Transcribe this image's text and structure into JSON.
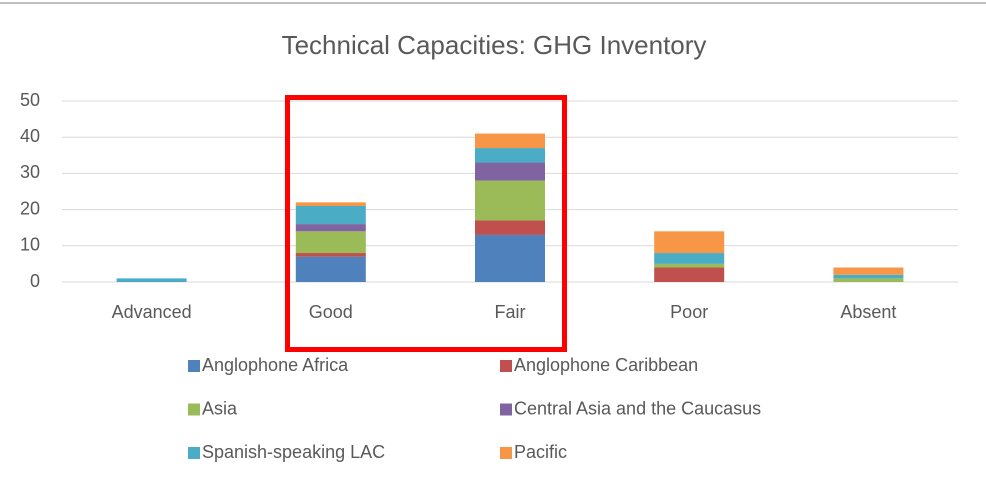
{
  "chart_data": {
    "type": "bar",
    "stacked": true,
    "title": "Technical Capacities: GHG Inventory",
    "categories": [
      "Advanced",
      "Good",
      "Fair",
      "Poor",
      "Absent"
    ],
    "series": [
      {
        "name": "Anglophone Africa",
        "color": "#4f81bd",
        "values": [
          0,
          7,
          13,
          0,
          0
        ]
      },
      {
        "name": "Anglophone Caribbean",
        "color": "#c0504d",
        "values": [
          0,
          1,
          4,
          4,
          0
        ]
      },
      {
        "name": "Asia",
        "color": "#9bbb59",
        "values": [
          0,
          6,
          11,
          1,
          1
        ]
      },
      {
        "name": "Central Asia and the Caucasus",
        "color": "#8064a2",
        "values": [
          0,
          2,
          5,
          0,
          0
        ]
      },
      {
        "name": "Spanish-speaking LAC",
        "color": "#4bacc6",
        "values": [
          1,
          5,
          4,
          3,
          1
        ]
      },
      {
        "name": "Pacific",
        "color": "#f79646",
        "values": [
          0,
          1,
          4,
          6,
          2
        ]
      }
    ],
    "ylim": [
      0,
      50
    ],
    "yticks": [
      0,
      10,
      20,
      30,
      40,
      50
    ],
    "grid": true,
    "legend": "bottom"
  }
}
